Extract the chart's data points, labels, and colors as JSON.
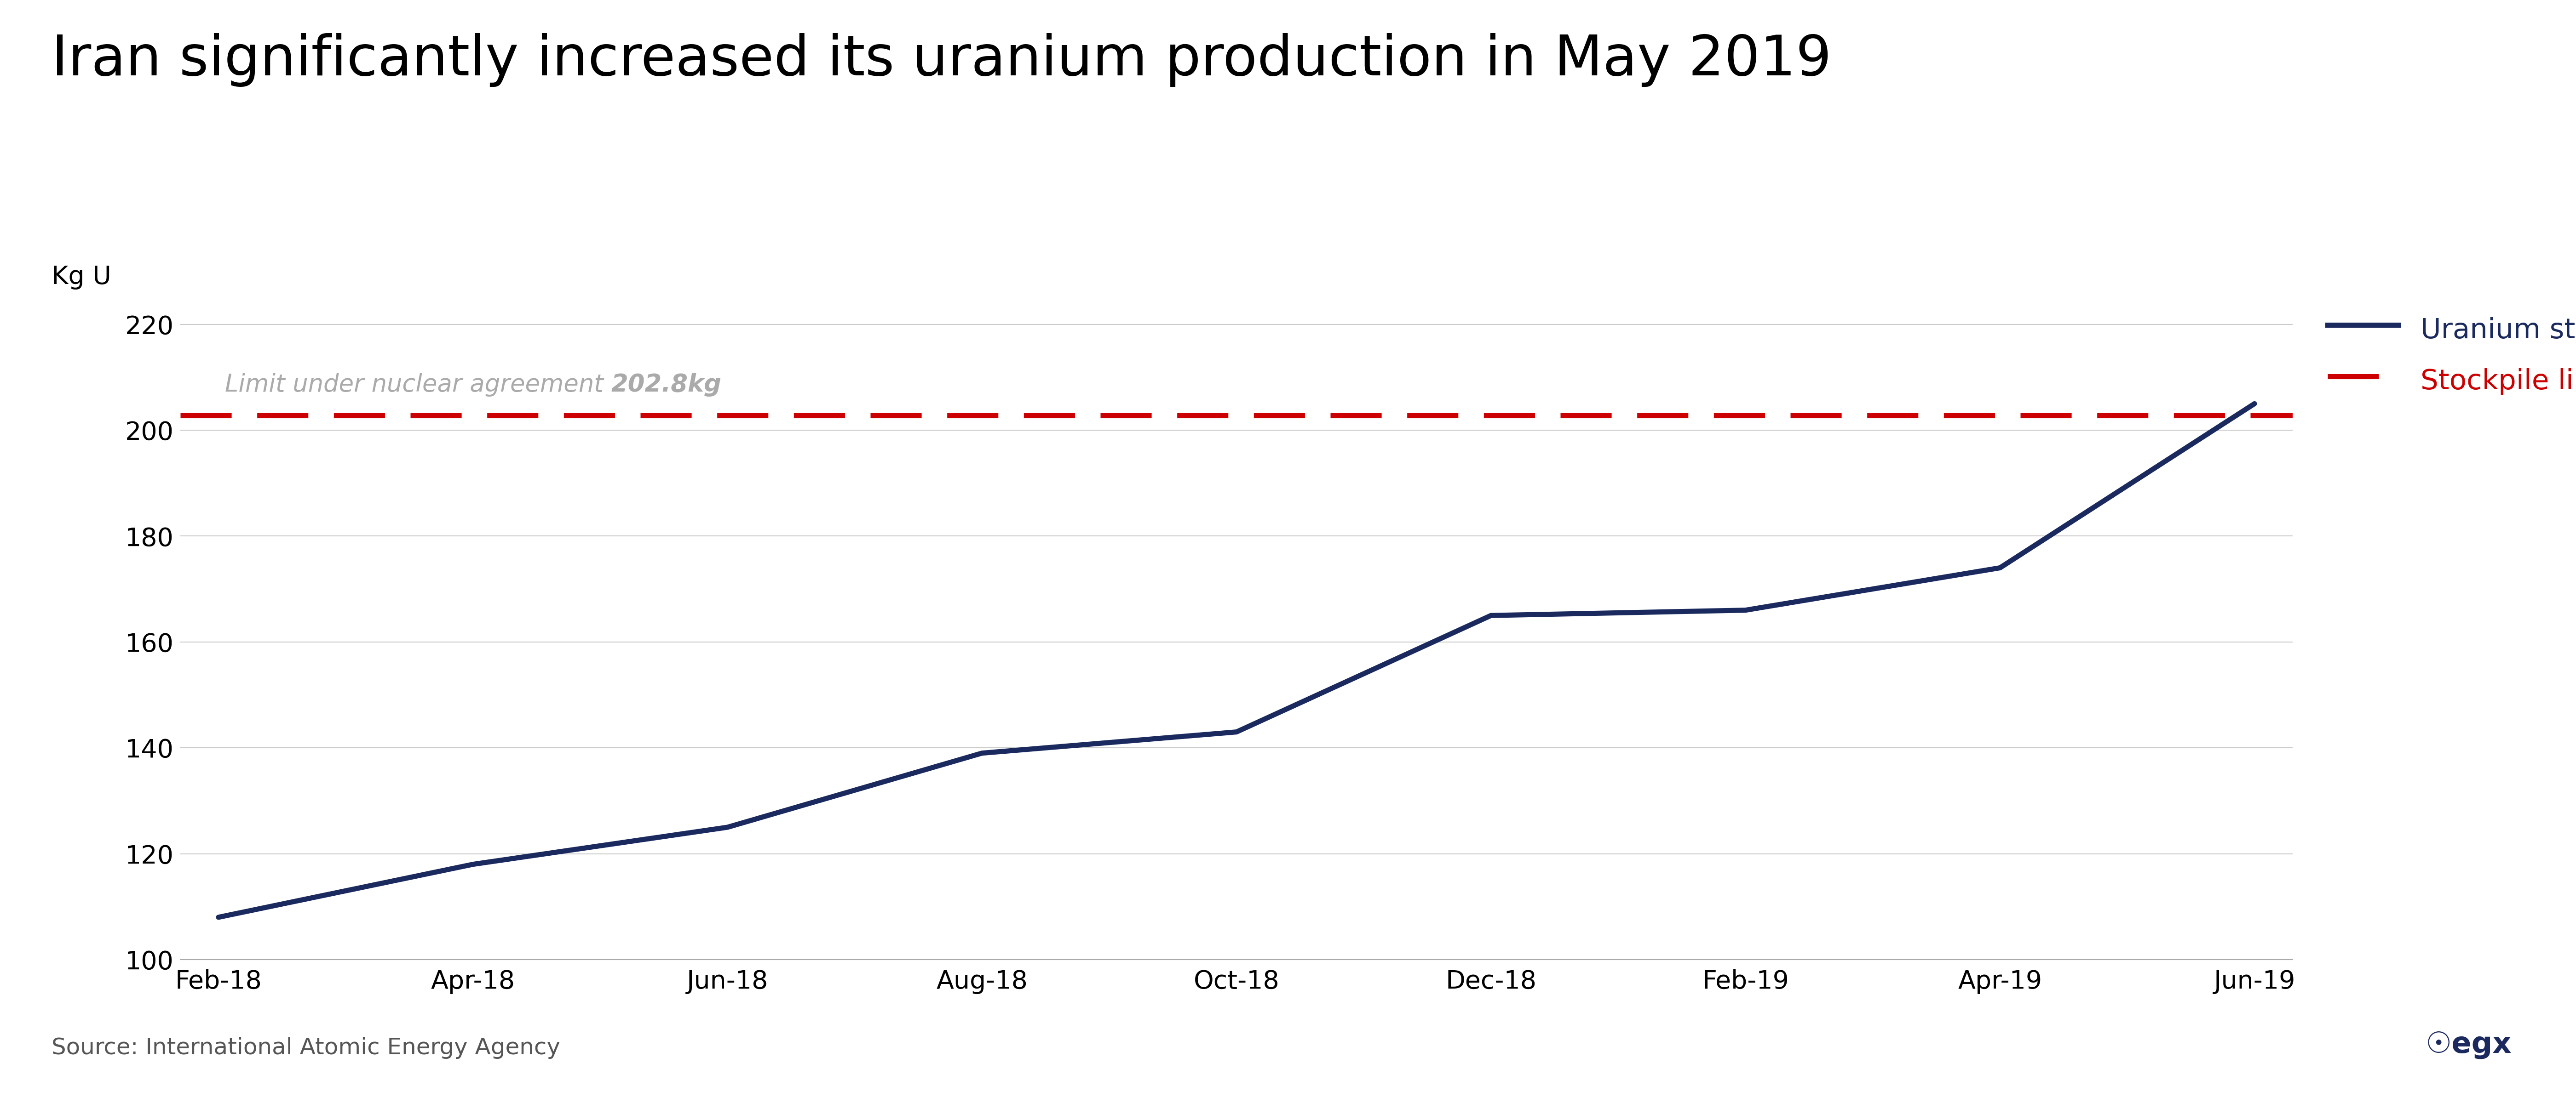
{
  "title": "Iran significantly increased its uranium production in May 2019",
  "ylabel": "Kg U",
  "background_color": "#ffffff",
  "title_fontsize": 88,
  "ylabel_fontsize": 40,
  "stockpile_limit": 202.8,
  "stockpile_limit_label_normal": "Limit under nuclear agreement ",
  "stockpile_limit_label_bold": "202.8kg",
  "x_labels": [
    "Feb-18",
    "Apr-18",
    "Jun-18",
    "Aug-18",
    "Oct-18",
    "Dec-18",
    "Feb-19",
    "Apr-19",
    "Jun-19"
  ],
  "x_values": [
    0,
    2,
    4,
    6,
    8,
    10,
    12,
    14,
    16
  ],
  "y_values": [
    108,
    118,
    125,
    139,
    143,
    165,
    166,
    174,
    205
  ],
  "ylim": [
    100,
    225
  ],
  "yticks": [
    100,
    120,
    140,
    160,
    180,
    200,
    220
  ],
  "line_color": "#1b2a5e",
  "line_width": 8,
  "dashed_color": "#cc0000",
  "dashed_linewidth": 8,
  "legend_stockpile": "Uranium stockpile",
  "legend_limit": "Stockpile limit",
  "legend_fontsize": 44,
  "source_text": "Source: International Atomic Energy Agency",
  "source_fontsize": 36,
  "annotation_fontsize": 38,
  "annotation_color": "#aaaaaa",
  "tick_fontsize": 40,
  "egx_color": "#1b2a5e"
}
